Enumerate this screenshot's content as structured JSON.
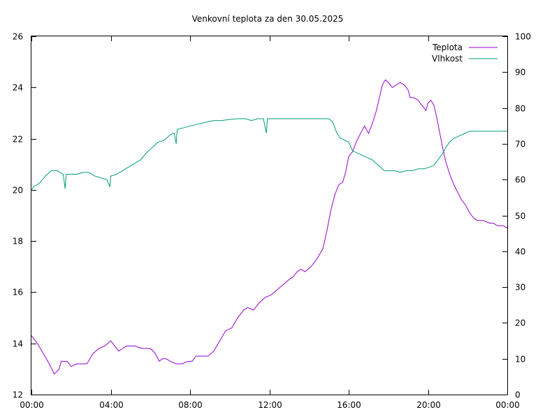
{
  "chart_data": {
    "type": "line",
    "title": "Venkovní teplota za den 30.05.2025",
    "xlabel": "",
    "ylabel": "",
    "y2label": "",
    "x_ticks": [
      "00:00",
      "04:00",
      "08:00",
      "12:00",
      "16:00",
      "20:00",
      "00:00"
    ],
    "xlim_hours": [
      0,
      24
    ],
    "ylim": [
      12,
      26
    ],
    "y_ticks": [
      12,
      14,
      16,
      18,
      20,
      22,
      24,
      26
    ],
    "y2lim": [
      0,
      100
    ],
    "y2_ticks": [
      0,
      10,
      20,
      30,
      40,
      50,
      60,
      70,
      80,
      90,
      100
    ],
    "grid": false,
    "legend_position": "top-right",
    "series": [
      {
        "name": "Teplota",
        "axis": "left",
        "color": "#9400d3",
        "points": [
          [
            0.0,
            14.3
          ],
          [
            0.3,
            14.0
          ],
          [
            0.6,
            13.6
          ],
          [
            0.9,
            13.2
          ],
          [
            1.15,
            12.8
          ],
          [
            1.4,
            13.0
          ],
          [
            1.5,
            13.3
          ],
          [
            1.8,
            13.3
          ],
          [
            2.0,
            13.1
          ],
          [
            2.3,
            13.2
          ],
          [
            2.6,
            13.2
          ],
          [
            2.8,
            13.2
          ],
          [
            3.1,
            13.6
          ],
          [
            3.4,
            13.8
          ],
          [
            3.7,
            13.9
          ],
          [
            4.0,
            14.1
          ],
          [
            4.2,
            13.9
          ],
          [
            4.4,
            13.7
          ],
          [
            4.6,
            13.8
          ],
          [
            4.8,
            13.9
          ],
          [
            5.2,
            13.9
          ],
          [
            5.6,
            13.8
          ],
          [
            6.0,
            13.8
          ],
          [
            6.25,
            13.6
          ],
          [
            6.45,
            13.3
          ],
          [
            6.6,
            13.4
          ],
          [
            6.8,
            13.4
          ],
          [
            7.0,
            13.3
          ],
          [
            7.3,
            13.2
          ],
          [
            7.6,
            13.2
          ],
          [
            7.9,
            13.3
          ],
          [
            8.1,
            13.3
          ],
          [
            8.3,
            13.5
          ],
          [
            8.6,
            13.5
          ],
          [
            8.9,
            13.5
          ],
          [
            9.2,
            13.7
          ],
          [
            9.5,
            14.1
          ],
          [
            9.8,
            14.5
          ],
          [
            10.1,
            14.6
          ],
          [
            10.4,
            15.0
          ],
          [
            10.7,
            15.3
          ],
          [
            10.9,
            15.4
          ],
          [
            11.2,
            15.3
          ],
          [
            11.5,
            15.6
          ],
          [
            11.8,
            15.8
          ],
          [
            12.1,
            15.9
          ],
          [
            12.4,
            16.1
          ],
          [
            12.7,
            16.3
          ],
          [
            13.0,
            16.5
          ],
          [
            13.2,
            16.6
          ],
          [
            13.4,
            16.8
          ],
          [
            13.6,
            16.9
          ],
          [
            13.8,
            16.8
          ],
          [
            14.1,
            17.0
          ],
          [
            14.4,
            17.3
          ],
          [
            14.7,
            17.7
          ],
          [
            14.9,
            18.4
          ],
          [
            15.1,
            19.2
          ],
          [
            15.3,
            19.8
          ],
          [
            15.5,
            20.2
          ],
          [
            15.7,
            20.3
          ],
          [
            15.85,
            20.7
          ],
          [
            16.0,
            21.3
          ],
          [
            16.2,
            21.5
          ],
          [
            16.4,
            21.9
          ],
          [
            16.6,
            22.2
          ],
          [
            16.8,
            22.5
          ],
          [
            17.0,
            22.2
          ],
          [
            17.2,
            22.6
          ],
          [
            17.4,
            23.1
          ],
          [
            17.55,
            23.6
          ],
          [
            17.7,
            24.1
          ],
          [
            17.85,
            24.3
          ],
          [
            18.0,
            24.2
          ],
          [
            18.2,
            24.0
          ],
          [
            18.4,
            24.1
          ],
          [
            18.6,
            24.2
          ],
          [
            18.8,
            24.1
          ],
          [
            19.0,
            23.9
          ],
          [
            19.1,
            23.6
          ],
          [
            19.3,
            23.6
          ],
          [
            19.5,
            23.5
          ],
          [
            19.7,
            23.3
          ],
          [
            19.9,
            23.1
          ],
          [
            20.0,
            23.4
          ],
          [
            20.15,
            23.5
          ],
          [
            20.3,
            23.3
          ],
          [
            20.45,
            22.8
          ],
          [
            20.6,
            22.2
          ],
          [
            20.75,
            21.6
          ],
          [
            20.9,
            21.1
          ],
          [
            21.1,
            20.6
          ],
          [
            21.3,
            20.2
          ],
          [
            21.5,
            19.9
          ],
          [
            21.7,
            19.6
          ],
          [
            21.9,
            19.4
          ],
          [
            22.1,
            19.1
          ],
          [
            22.3,
            18.9
          ],
          [
            22.5,
            18.8
          ],
          [
            22.8,
            18.8
          ],
          [
            23.1,
            18.7
          ],
          [
            23.3,
            18.7
          ],
          [
            23.5,
            18.6
          ],
          [
            23.8,
            18.6
          ],
          [
            24.0,
            18.5
          ]
        ]
      },
      {
        "name": "Vlhkost",
        "axis": "right",
        "color": "#009e73",
        "points": [
          [
            0.0,
            57.0
          ],
          [
            0.1,
            58.0
          ],
          [
            0.4,
            59.0
          ],
          [
            0.7,
            61.0
          ],
          [
            1.0,
            62.5
          ],
          [
            1.3,
            62.5
          ],
          [
            1.6,
            61.5
          ],
          [
            1.7,
            57.5
          ],
          [
            1.75,
            61.5
          ],
          [
            2.0,
            61.5
          ],
          [
            2.3,
            61.5
          ],
          [
            2.6,
            62.0
          ],
          [
            2.9,
            62.0
          ],
          [
            3.2,
            61.0
          ],
          [
            3.5,
            60.5
          ],
          [
            3.8,
            60.0
          ],
          [
            3.95,
            58.0
          ],
          [
            4.0,
            61.0
          ],
          [
            4.3,
            61.5
          ],
          [
            4.6,
            62.5
          ],
          [
            4.9,
            63.5
          ],
          [
            5.2,
            64.5
          ],
          [
            5.5,
            65.5
          ],
          [
            5.8,
            67.5
          ],
          [
            6.1,
            69.0
          ],
          [
            6.4,
            70.5
          ],
          [
            6.7,
            71.0
          ],
          [
            7.0,
            72.5
          ],
          [
            7.2,
            73.0
          ],
          [
            7.3,
            70.0
          ],
          [
            7.35,
            74.0
          ],
          [
            7.7,
            74.5
          ],
          [
            8.0,
            75.0
          ],
          [
            8.4,
            75.5
          ],
          [
            8.8,
            76.0
          ],
          [
            9.2,
            76.5
          ],
          [
            9.6,
            76.5
          ],
          [
            10.0,
            76.8
          ],
          [
            10.4,
            77.0
          ],
          [
            10.8,
            77.0
          ],
          [
            11.1,
            76.5
          ],
          [
            11.4,
            77.0
          ],
          [
            11.7,
            77.0
          ],
          [
            11.85,
            73.0
          ],
          [
            11.9,
            77.0
          ],
          [
            12.3,
            77.0
          ],
          [
            12.7,
            77.0
          ],
          [
            13.1,
            77.0
          ],
          [
            13.5,
            77.0
          ],
          [
            13.9,
            77.0
          ],
          [
            14.3,
            77.0
          ],
          [
            14.7,
            77.0
          ],
          [
            15.0,
            77.0
          ],
          [
            15.2,
            76.0
          ],
          [
            15.4,
            73.0
          ],
          [
            15.6,
            71.5
          ],
          [
            15.8,
            71.0
          ],
          [
            16.0,
            70.5
          ],
          [
            16.2,
            68.0
          ],
          [
            16.4,
            67.5
          ],
          [
            16.6,
            67.0
          ],
          [
            16.8,
            66.5
          ],
          [
            17.0,
            66.0
          ],
          [
            17.2,
            65.5
          ],
          [
            17.4,
            64.5
          ],
          [
            17.6,
            63.5
          ],
          [
            17.8,
            62.5
          ],
          [
            18.0,
            62.5
          ],
          [
            18.3,
            62.5
          ],
          [
            18.6,
            62.0
          ],
          [
            18.9,
            62.5
          ],
          [
            19.2,
            62.5
          ],
          [
            19.5,
            63.0
          ],
          [
            19.8,
            63.0
          ],
          [
            20.1,
            63.5
          ],
          [
            20.3,
            64.0
          ],
          [
            20.5,
            65.5
          ],
          [
            20.7,
            67.0
          ],
          [
            20.9,
            69.0
          ],
          [
            21.1,
            70.5
          ],
          [
            21.3,
            71.5
          ],
          [
            21.5,
            72.0
          ],
          [
            21.7,
            72.5
          ],
          [
            21.9,
            73.0
          ],
          [
            22.1,
            73.5
          ],
          [
            22.4,
            73.5
          ],
          [
            22.7,
            73.5
          ],
          [
            23.0,
            73.5
          ],
          [
            23.3,
            73.5
          ],
          [
            23.6,
            73.5
          ],
          [
            24.0,
            73.5
          ]
        ]
      }
    ]
  }
}
